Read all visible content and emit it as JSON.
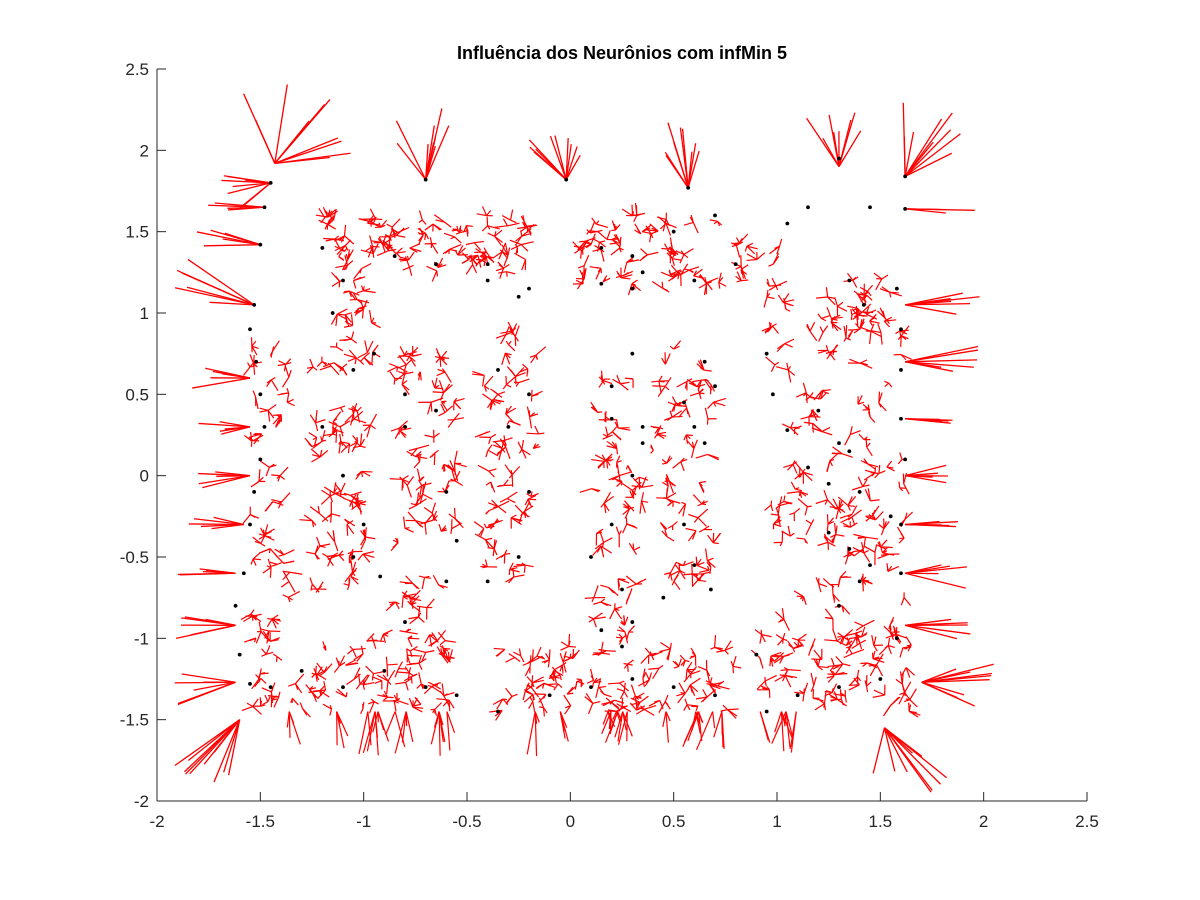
{
  "chart_data": {
    "type": "scatter",
    "title": "Influência dos Neurônios com infMin 5",
    "xlabel": "",
    "ylabel": "",
    "xlim": [
      -2,
      2.5
    ],
    "ylim": [
      -2,
      2.5
    ],
    "x_ticks": [
      "-2",
      "-1.5",
      "-1",
      "-0.5",
      "0",
      "0.5",
      "1",
      "1.5",
      "2",
      "2.5"
    ],
    "y_ticks": [
      "-2",
      "-1.5",
      "-1",
      "-0.5",
      "0",
      "0.5",
      "1",
      "1.5",
      "2",
      "2.5"
    ],
    "grid": false,
    "legend": "none",
    "colors": {
      "neuron": "#000000",
      "influence": "#ff0000",
      "axis": "#262626"
    },
    "series": [
      {
        "kind": "points",
        "color": "#000000",
        "points": [
          [
            -1.45,
            1.8
          ],
          [
            -1.48,
            1.65
          ],
          [
            -1.5,
            1.42
          ],
          [
            -1.53,
            1.05
          ],
          [
            -0.7,
            1.82
          ],
          [
            -0.02,
            1.82
          ],
          [
            0.57,
            1.77
          ],
          [
            1.62,
            1.84
          ],
          [
            1.62,
            1.64
          ],
          [
            1.45,
            1.65
          ],
          [
            -1.55,
            0.9
          ],
          [
            -1.52,
            0.7
          ],
          [
            -1.5,
            0.5
          ],
          [
            -1.48,
            0.3
          ],
          [
            -1.5,
            0.1
          ],
          [
            -1.53,
            -0.1
          ],
          [
            -1.55,
            -0.3
          ],
          [
            -1.58,
            -0.6
          ],
          [
            -1.62,
            -0.8
          ],
          [
            -1.6,
            -1.1
          ],
          [
            -1.55,
            -1.28
          ],
          [
            -1.45,
            -1.3
          ],
          [
            -1.3,
            -1.2
          ],
          [
            -1.1,
            -1.3
          ],
          [
            -0.9,
            -1.2
          ],
          [
            -0.7,
            -1.3
          ],
          [
            -0.55,
            -1.35
          ],
          [
            -0.35,
            -1.45
          ],
          [
            -0.1,
            -1.35
          ],
          [
            0.1,
            -1.3
          ],
          [
            0.3,
            -1.25
          ],
          [
            0.5,
            -1.3
          ],
          [
            0.7,
            -1.35
          ],
          [
            0.9,
            -1.1
          ],
          [
            0.95,
            -1.45
          ],
          [
            1.1,
            -1.35
          ],
          [
            1.3,
            -1.3
          ],
          [
            1.5,
            -1.25
          ],
          [
            1.58,
            -1.0
          ],
          [
            1.6,
            -0.6
          ],
          [
            1.6,
            -0.3
          ],
          [
            1.62,
            0.1
          ],
          [
            1.6,
            0.35
          ],
          [
            1.6,
            0.65
          ],
          [
            1.6,
            0.9
          ],
          [
            1.58,
            1.15
          ],
          [
            1.35,
            1.2
          ],
          [
            -1.2,
            1.4
          ],
          [
            -1.1,
            1.2
          ],
          [
            -1.15,
            1.0
          ],
          [
            -0.85,
            1.35
          ],
          [
            -0.65,
            1.3
          ],
          [
            -0.4,
            1.2
          ],
          [
            -0.25,
            1.1
          ],
          [
            -0.95,
            0.75
          ],
          [
            -1.05,
            0.65
          ],
          [
            -1.2,
            0.3
          ],
          [
            -1.1,
            0.0
          ],
          [
            -1.0,
            -0.3
          ],
          [
            -1.05,
            -0.5
          ],
          [
            -0.92,
            -0.62
          ],
          [
            -0.8,
            -0.9
          ],
          [
            -0.8,
            0.3
          ],
          [
            -0.8,
            0.5
          ],
          [
            -0.65,
            0.4
          ],
          [
            -0.6,
            -0.1
          ],
          [
            -0.55,
            -0.4
          ],
          [
            -0.6,
            -0.65
          ],
          [
            -0.35,
            0.65
          ],
          [
            -0.3,
            0.3
          ],
          [
            -0.2,
            0.5
          ],
          [
            -0.2,
            -0.1
          ],
          [
            -0.25,
            -0.5
          ],
          [
            -0.4,
            -0.65
          ],
          [
            -0.2,
            1.15
          ],
          [
            -0.4,
            1.3
          ],
          [
            0.15,
            1.4
          ],
          [
            0.3,
            1.35
          ],
          [
            0.5,
            1.5
          ],
          [
            0.7,
            1.6
          ],
          [
            0.8,
            1.3
          ],
          [
            0.6,
            1.2
          ],
          [
            0.35,
            1.25
          ],
          [
            0.15,
            1.18
          ],
          [
            0.3,
            1.15
          ],
          [
            0.3,
            0.75
          ],
          [
            0.2,
            0.55
          ],
          [
            0.2,
            0.35
          ],
          [
            0.35,
            0.3
          ],
          [
            0.35,
            0.2
          ],
          [
            0.65,
            0.7
          ],
          [
            0.7,
            0.55
          ],
          [
            0.55,
            0.45
          ],
          [
            0.6,
            0.3
          ],
          [
            0.65,
            0.2
          ],
          [
            0.55,
            -0.3
          ],
          [
            0.6,
            -0.55
          ],
          [
            0.45,
            -0.75
          ],
          [
            0.68,
            -0.7
          ],
          [
            0.25,
            -0.7
          ],
          [
            0.1,
            -0.5
          ],
          [
            0.2,
            -0.3
          ],
          [
            0.3,
            0.0
          ],
          [
            0.15,
            -0.95
          ],
          [
            0.3,
            -0.9
          ],
          [
            0.25,
            -1.05
          ],
          [
            0.95,
            0.75
          ],
          [
            0.98,
            0.5
          ],
          [
            1.05,
            0.28
          ],
          [
            1.2,
            0.4
          ],
          [
            1.3,
            0.2
          ],
          [
            1.15,
            0.05
          ],
          [
            1.25,
            -0.05
          ],
          [
            1.35,
            0.15
          ],
          [
            1.4,
            -0.1
          ],
          [
            1.25,
            -0.35
          ],
          [
            1.35,
            -0.45
          ],
          [
            1.4,
            -0.65
          ],
          [
            1.3,
            -0.8
          ],
          [
            1.45,
            -0.55
          ],
          [
            1.55,
            -0.25
          ],
          [
            1.42,
            1.05
          ],
          [
            1.15,
            1.65
          ],
          [
            1.3,
            1.95
          ],
          [
            1.05,
            1.55
          ]
        ]
      },
      {
        "kind": "influence",
        "color": "#ff0000"
      }
    ]
  }
}
